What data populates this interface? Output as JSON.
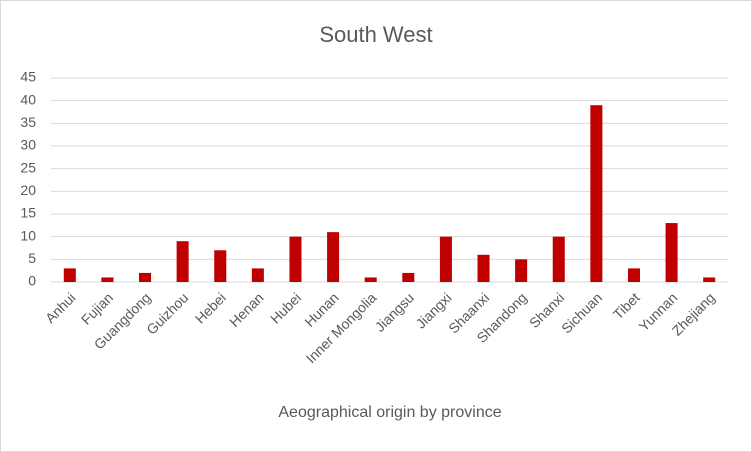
{
  "chart_data": {
    "type": "bar",
    "title": "South West",
    "x_label": "Aeographical origin by province",
    "categories": [
      "Anhui",
      "Fujian",
      "Guangdong",
      "Guizhou",
      "Hebei",
      "Henan",
      "Hubei",
      "Hunan",
      "Inner Mongolia",
      "Jiangsu",
      "Jiangxi",
      "Shaanxi",
      "Shandong",
      "Shanxi",
      "Sichuan",
      "Tibet",
      "Yunnan",
      "Zhejiang"
    ],
    "values": [
      3,
      1,
      2,
      9,
      7,
      3,
      10,
      11,
      1,
      2,
      10,
      6,
      5,
      10,
      39,
      3,
      13,
      1
    ],
    "color": "#c00000",
    "ylim": [
      0,
      45
    ],
    "yticks": [
      0,
      5,
      10,
      15,
      20,
      25,
      30,
      35,
      40,
      45
    ],
    "grid": true
  }
}
